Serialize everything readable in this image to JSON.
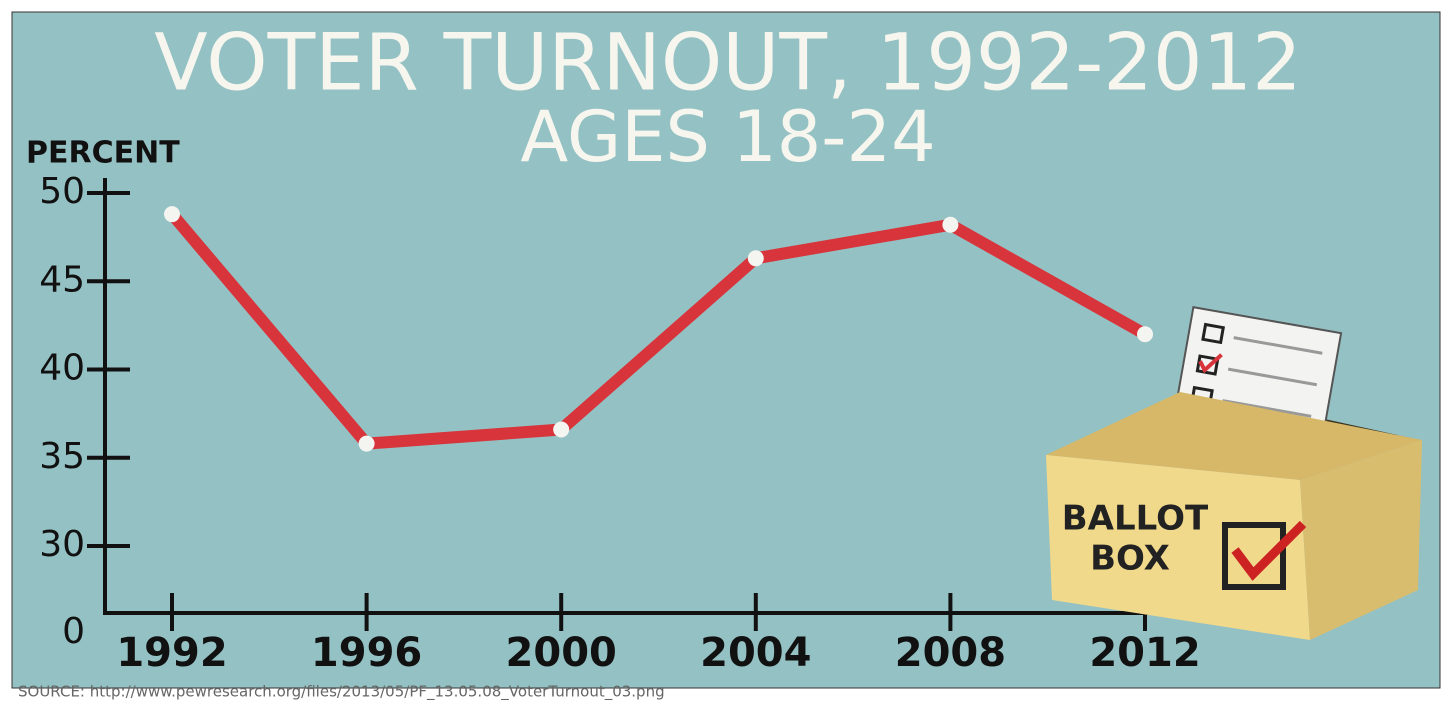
{
  "chart_data": {
    "type": "line",
    "title": "VOTER TURNOUT, 1992-2012",
    "subtitle": "AGES 18-24",
    "y_label": "PERCENT",
    "source": "SOURCE: http://www.pewresearch.org/files/2013/05/PF_13.05.08_VoterTurnout_03.png",
    "annotations": [
      "BALLOT",
      "BOX"
    ],
    "categories": [
      "1992",
      "1996",
      "2000",
      "2004",
      "2008",
      "2012"
    ],
    "values": [
      48.8,
      35.8,
      36.6,
      46.3,
      48.2,
      42.0
    ],
    "color": "#d8343b",
    "ylim": [
      0,
      50
    ],
    "yticks": [
      0,
      30,
      35,
      40,
      45,
      50
    ],
    "axis_break": true
  }
}
